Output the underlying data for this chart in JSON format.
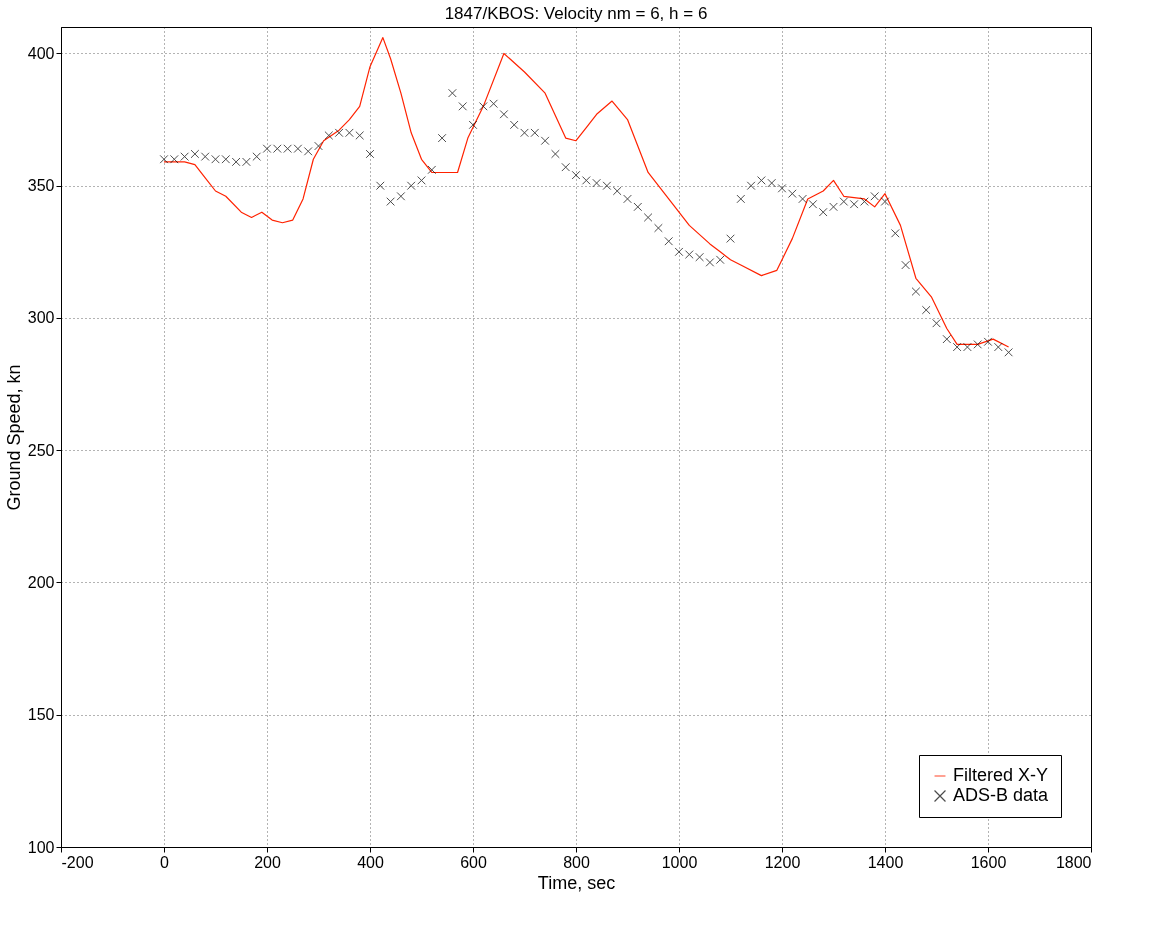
{
  "chart_data": {
    "type": "line",
    "title": "1847/KBOS: Velocity nm = 6, h = 6",
    "xlabel": "Time, sec",
    "ylabel": "Ground Speed, kn",
    "xlim": [
      -200,
      1800
    ],
    "xticks": [
      -200,
      0,
      200,
      400,
      600,
      800,
      1000,
      1200,
      1400,
      1600,
      1800
    ],
    "ylim": [
      100,
      410
    ],
    "yticks": [
      100,
      150,
      200,
      250,
      300,
      350,
      400
    ],
    "grid": true,
    "legend": "bottom right",
    "series": [
      {
        "name": "Filtered X-Y",
        "color": "#ff2200",
        "marker": "none",
        "x": [
          0,
          40,
          60,
          80,
          100,
          120,
          150,
          170,
          190,
          210,
          230,
          250,
          270,
          290,
          310,
          340,
          360,
          380,
          400,
          425,
          440,
          460,
          480,
          500,
          520,
          540,
          570,
          590,
          620,
          660,
          700,
          740,
          780,
          800,
          820,
          840,
          870,
          900,
          920,
          940,
          980,
          1020,
          1060,
          1080,
          1100,
          1120,
          1160,
          1190,
          1220,
          1250,
          1280,
          1300,
          1320,
          1360,
          1380,
          1400,
          1430,
          1460,
          1490,
          1520,
          1540,
          1580,
          1610,
          1640
        ],
        "values": [
          359,
          359,
          358,
          353,
          348,
          346,
          340,
          338,
          340,
          337,
          336,
          337,
          345,
          360,
          367,
          371,
          375,
          380,
          395,
          406,
          398,
          385,
          370,
          360,
          355,
          355,
          355,
          368,
          380,
          400,
          393,
          385,
          368,
          367,
          372,
          377,
          382,
          375,
          365,
          355,
          345,
          335,
          328,
          325,
          322,
          320,
          316,
          318,
          330,
          345,
          348,
          352,
          346,
          345,
          342,
          347,
          335,
          315,
          308,
          296,
          290,
          290,
          292,
          289
        ]
      },
      {
        "name": "ADS-B data",
        "color": "#000000",
        "type": "scatter",
        "marker": "cross",
        "x": [
          0,
          20,
          40,
          60,
          80,
          100,
          120,
          140,
          160,
          180,
          200,
          220,
          240,
          260,
          280,
          300,
          320,
          340,
          360,
          380,
          400,
          420,
          440,
          460,
          480,
          500,
          520,
          540,
          560,
          580,
          600,
          620,
          640,
          660,
          680,
          700,
          720,
          740,
          760,
          780,
          800,
          820,
          840,
          860,
          880,
          900,
          920,
          940,
          960,
          980,
          1000,
          1020,
          1040,
          1060,
          1080,
          1100,
          1120,
          1140,
          1160,
          1180,
          1200,
          1220,
          1240,
          1260,
          1280,
          1300,
          1320,
          1340,
          1360,
          1380,
          1400,
          1420,
          1440,
          1460,
          1480,
          1500,
          1520,
          1540,
          1560,
          1580,
          1600,
          1620,
          1640
        ],
        "values": [
          360,
          360,
          361,
          362,
          361,
          360,
          360,
          359,
          359,
          361,
          364,
          364,
          364,
          364,
          363,
          365,
          369,
          370,
          370,
          369,
          362,
          350,
          344,
          346,
          350,
          352,
          356,
          368,
          385,
          380,
          373,
          380,
          381,
          377,
          373,
          370,
          370,
          367,
          362,
          357,
          354,
          352,
          351,
          350,
          348,
          345,
          342,
          338,
          334,
          329,
          325,
          324,
          323,
          321,
          322,
          330,
          345,
          350,
          352,
          351,
          349,
          347,
          345,
          343,
          340,
          342,
          344,
          343,
          344,
          346,
          344,
          332,
          320,
          310,
          303,
          298,
          292,
          289,
          289,
          290,
          291,
          289,
          287
        ]
      }
    ]
  }
}
